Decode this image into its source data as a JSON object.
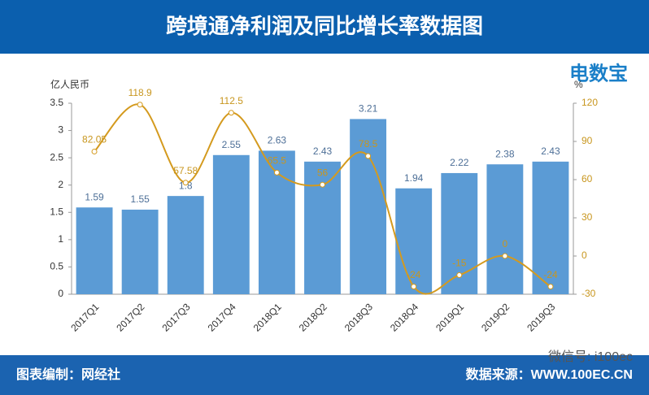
{
  "header": {
    "title": "跨境通净利润及同比增长率数据图"
  },
  "logo": {
    "text": "电数宝"
  },
  "watermark": "微信号: i100ec",
  "footer": {
    "left": "图表编制：网经社",
    "right": "数据来源：WWW.100EC.CN"
  },
  "chart_data": {
    "type": "bar",
    "y_label": "亿人民币",
    "y2_label": "%",
    "categories": [
      "2017Q1",
      "2017Q2",
      "2017Q3",
      "2017Q4",
      "2018Q1",
      "2018Q2",
      "2018Q3",
      "2018Q4",
      "2019Q1",
      "2019Q2",
      "2019Q3"
    ],
    "series": [
      {
        "type": "bar",
        "color": "#5b9bd5",
        "values": [
          1.59,
          1.55,
          1.8,
          2.55,
          2.63,
          2.43,
          3.21,
          1.94,
          2.22,
          2.38,
          2.43
        ]
      },
      {
        "type": "line",
        "axis": "y2",
        "color": "#d49a1e",
        "values": [
          82.05,
          118.9,
          57.58,
          112.5,
          65.5,
          56,
          78.5,
          -24,
          -15,
          0,
          -24
        ]
      }
    ],
    "ylim": [
      0,
      3.5
    ],
    "yticks": [
      0,
      0.5,
      1,
      1.5,
      2,
      2.5,
      3,
      3.5
    ],
    "y2lim": [
      -30,
      120
    ],
    "y2ticks": [
      -30,
      0,
      30,
      60,
      90,
      120
    ]
  }
}
